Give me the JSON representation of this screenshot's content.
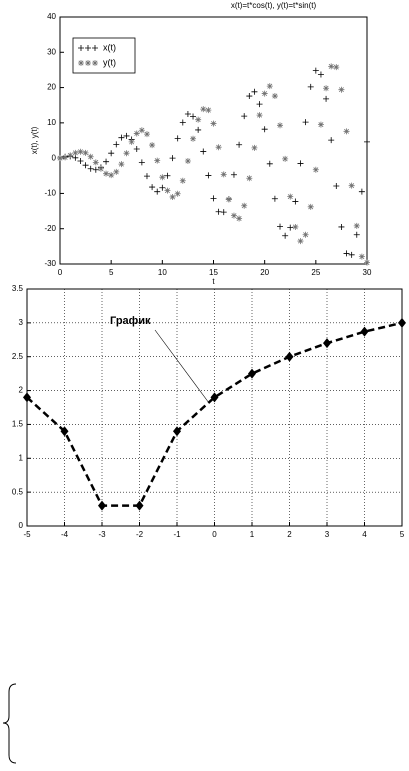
{
  "chart_data": [
    {
      "type": "scatter",
      "title": "x(t)=t*cos(t), y(t)=t*sin(t)",
      "x_label": "t",
      "y_label": "x(t), y(t)",
      "x": [
        0,
        0.5,
        1,
        1.5,
        2,
        2.5,
        3,
        3.5,
        4,
        4.5,
        5,
        5.5,
        6,
        6.5,
        7,
        7.5,
        8,
        8.5,
        9,
        9.5,
        10,
        10.5,
        11,
        11.5,
        12,
        12.5,
        13,
        13.5,
        14,
        14.5,
        15,
        15.5,
        16,
        16.5,
        17,
        17.5,
        18,
        18.5,
        19,
        19.5,
        20,
        20.5,
        21,
        21.5,
        22,
        22.5,
        23,
        23.5,
        24,
        24.5,
        25,
        25.5,
        26,
        26.5,
        27,
        27.5,
        28,
        28.5,
        29,
        29.5,
        30
      ],
      "series": [
        {
          "name": "x(t)",
          "color": "#000000",
          "marker": "plus",
          "values": [
            0,
            0.4,
            0.5,
            0.1,
            -0.8,
            -2.0,
            -3.0,
            -3.3,
            -2.6,
            -1.0,
            1.4,
            3.9,
            5.8,
            6.3,
            5.3,
            2.6,
            -1.2,
            -5.1,
            -8.2,
            -9.5,
            -8.4,
            -5.0,
            0.0,
            5.6,
            10.1,
            12.5,
            11.8,
            8.0,
            1.9,
            -4.9,
            -11.4,
            -15.2,
            -15.3,
            -11.6,
            -4.7,
            3.8,
            11.9,
            17.6,
            18.8,
            15.3,
            8.2,
            -1.6,
            -11.5,
            -19.4,
            -22.0,
            -19.7,
            -12.3,
            -1.5,
            10.2,
            20.2,
            24.8,
            23.7,
            16.8,
            5.1,
            -7.9,
            -19.5,
            -27.0,
            -27.4,
            -21.7,
            -9.5,
            4.6
          ]
        },
        {
          "name": "y(t)",
          "color": "#707070",
          "marker": "star",
          "values": [
            0,
            0.2,
            0.8,
            1.5,
            1.8,
            1.5,
            0.4,
            -1.2,
            -3.0,
            -4.4,
            -4.8,
            -3.9,
            -1.7,
            1.4,
            4.6,
            7.0,
            7.9,
            6.8,
            3.7,
            -0.7,
            -5.4,
            -9.2,
            -11.0,
            -10.1,
            -6.4,
            -0.8,
            5.5,
            10.9,
            13.9,
            13.6,
            9.8,
            3.1,
            -4.6,
            -11.7,
            -16.3,
            -17.1,
            -13.5,
            -5.7,
            2.9,
            12.2,
            18.3,
            20.4,
            17.6,
            9.3,
            -0.2,
            -10.9,
            -19.5,
            -23.5,
            -21.7,
            -13.8,
            -3.3,
            9.5,
            19.8,
            26.0,
            25.8,
            19.4,
            7.6,
            -7.8,
            -19.2,
            -27.9,
            -29.6
          ]
        }
      ],
      "xlim": [
        0,
        30
      ],
      "xticks": [
        0,
        5,
        10,
        15,
        20,
        25,
        30
      ],
      "ylim": [
        -30,
        40
      ],
      "yticks": [
        -30,
        -20,
        -10,
        0,
        10,
        20,
        30,
        40
      ],
      "grid": false,
      "legend": "upper-left"
    },
    {
      "type": "line",
      "annotation": "График",
      "x": [
        -5,
        -4,
        -3,
        -2,
        -1,
        0,
        1,
        2,
        3,
        4,
        5
      ],
      "values": [
        1.9,
        1.4,
        0.3,
        0.3,
        1.4,
        1.9,
        2.25,
        2.5,
        2.7,
        2.87,
        3.0
      ],
      "color": "#000000",
      "xlim": [
        -5,
        5
      ],
      "xticks": [
        -5,
        -4,
        -3,
        -2,
        -1,
        0,
        1,
        2,
        3,
        4,
        5
      ],
      "ylim": [
        0,
        3.5
      ],
      "yticks": [
        0,
        0.5,
        1,
        1.5,
        2,
        2.5,
        3,
        3.5
      ],
      "grid": true
    }
  ]
}
